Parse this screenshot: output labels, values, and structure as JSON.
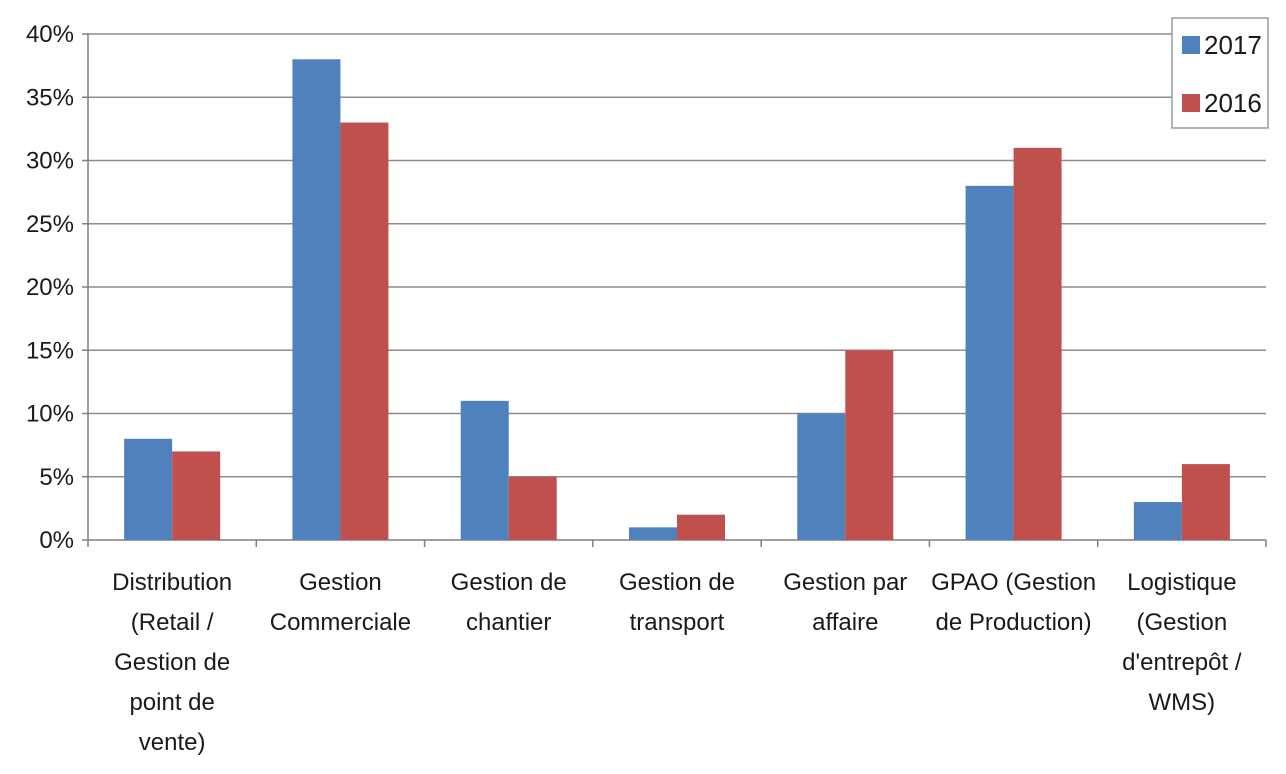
{
  "chart_data": {
    "type": "bar",
    "categories": [
      [
        "Distribution",
        "(Retail /",
        "Gestion de",
        "point de",
        "vente)"
      ],
      [
        "Gestion",
        "Commerciale"
      ],
      [
        "Gestion de",
        "chantier"
      ],
      [
        "Gestion de",
        "transport"
      ],
      [
        "Gestion par",
        "affaire"
      ],
      [
        "GPAO (Gestion",
        "de Production)"
      ],
      [
        "Logistique",
        "(Gestion",
        "d'entrepôt /",
        "WMS)"
      ]
    ],
    "series": [
      {
        "name": "2017",
        "color": "#4f81bd",
        "values": [
          8,
          38,
          11,
          1,
          10,
          28,
          3
        ]
      },
      {
        "name": "2016",
        "color": "#c0504d",
        "values": [
          7,
          33,
          5,
          2,
          15,
          31,
          6
        ]
      }
    ],
    "yticks": [
      "0%",
      "5%",
      "10%",
      "15%",
      "20%",
      "25%",
      "30%",
      "35%",
      "40%"
    ],
    "ylim": [
      0,
      40
    ],
    "ystep": 5,
    "grid": true,
    "legend_position": "top-right",
    "title": "",
    "xlabel": "",
    "ylabel": ""
  }
}
